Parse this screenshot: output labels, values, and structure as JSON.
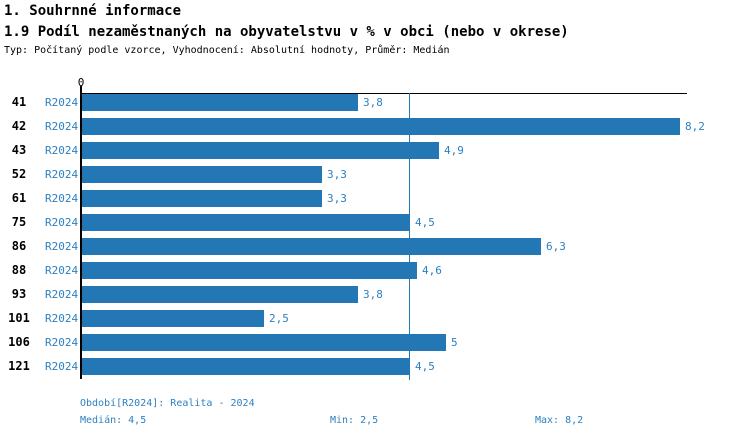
{
  "header": {
    "title1": "1. Souhrnné informace",
    "title2": "1.9 Podíl nezaměstnaných na obyvatelstvu v % v obci (nebo v okrese)",
    "subtitle": "Typ: Počítaný podle vzorce, Vyhodnocení: Absolutní hodnoty, Průměr: Medián"
  },
  "chart_data": {
    "type": "bar",
    "orientation": "horizontal",
    "title": "1.9 Podíl nezaměstnaných na obyvatelstvu v % v obci (nebo v okrese)",
    "categories": [
      "41",
      "42",
      "43",
      "52",
      "61",
      "75",
      "86",
      "88",
      "93",
      "101",
      "106",
      "121"
    ],
    "series": [
      {
        "name": "R2024",
        "values": [
          3.8,
          8.2,
          4.9,
          3.3,
          3.3,
          4.5,
          6.3,
          4.6,
          3.8,
          2.5,
          5,
          4.5
        ],
        "value_labels": [
          "3,8",
          "8,2",
          "4,9",
          "3,3",
          "3,3",
          "4,5",
          "6,3",
          "4,6",
          "3,8",
          "2,5",
          "5",
          "4,5"
        ]
      }
    ],
    "axis": {
      "origin_label": "0",
      "xmin": 0,
      "xmax": 8.3,
      "grid": false
    },
    "median_reference_line": 4.5,
    "bar_color": "#2277b4",
    "label_color": "#2e80c0",
    "legend_position": "none"
  },
  "footer": {
    "period": "Období[R2024]: Realita - 2024",
    "median": "Medián: 4,5",
    "min": "Min: 2,5",
    "max": "Max: 8,2"
  }
}
